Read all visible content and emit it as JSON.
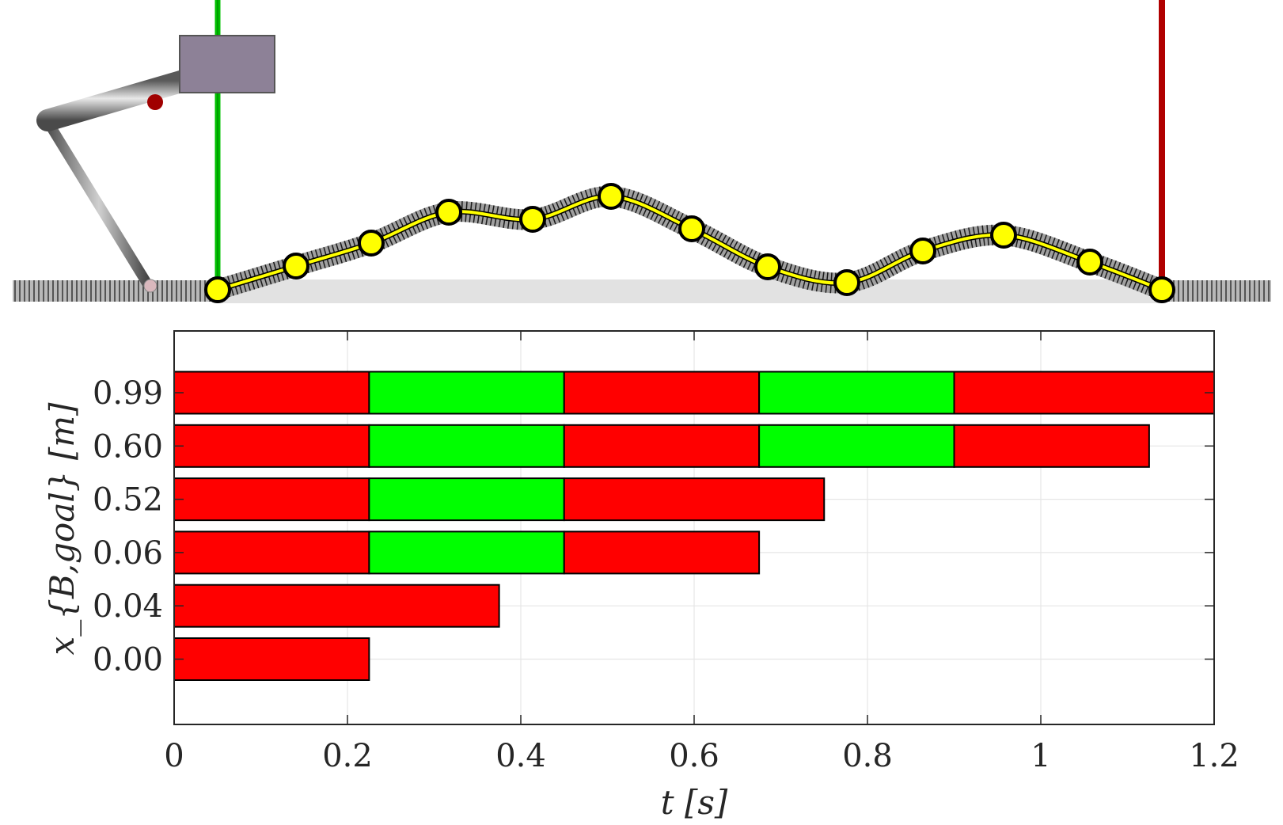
{
  "chart_data": {
    "type": "bar",
    "orientation": "horizontal-stacked-timeline",
    "xlabel": "t [s]",
    "ylabel": "x_{B,goal} [m]",
    "xlim": [
      0,
      1.2
    ],
    "xticks": [
      "0",
      "0.2",
      "0.4",
      "0.6",
      "0.8",
      "1",
      "1.2"
    ],
    "xtick_values": [
      0,
      0.2,
      0.4,
      0.6,
      0.8,
      1,
      1.2
    ],
    "grid": true,
    "phase_colors": {
      "stance": "#ff0000",
      "flight": "#00ff00"
    },
    "rows": [
      {
        "label": "0.99",
        "segments": [
          {
            "start": 0,
            "end": 0.225,
            "phase": "stance"
          },
          {
            "start": 0.225,
            "end": 0.45,
            "phase": "flight"
          },
          {
            "start": 0.45,
            "end": 0.675,
            "phase": "stance"
          },
          {
            "start": 0.675,
            "end": 0.9,
            "phase": "flight"
          },
          {
            "start": 0.9,
            "end": 1.2,
            "phase": "stance"
          }
        ]
      },
      {
        "label": "0.60",
        "segments": [
          {
            "start": 0,
            "end": 0.225,
            "phase": "stance"
          },
          {
            "start": 0.225,
            "end": 0.45,
            "phase": "flight"
          },
          {
            "start": 0.45,
            "end": 0.675,
            "phase": "stance"
          },
          {
            "start": 0.675,
            "end": 0.9,
            "phase": "flight"
          },
          {
            "start": 0.9,
            "end": 1.125,
            "phase": "stance"
          }
        ]
      },
      {
        "label": "0.52",
        "segments": [
          {
            "start": 0,
            "end": 0.225,
            "phase": "stance"
          },
          {
            "start": 0.225,
            "end": 0.45,
            "phase": "flight"
          },
          {
            "start": 0.45,
            "end": 0.75,
            "phase": "stance"
          }
        ]
      },
      {
        "label": "0.06",
        "segments": [
          {
            "start": 0,
            "end": 0.225,
            "phase": "stance"
          },
          {
            "start": 0.225,
            "end": 0.45,
            "phase": "flight"
          },
          {
            "start": 0.45,
            "end": 0.675,
            "phase": "stance"
          }
        ]
      },
      {
        "label": "0.04",
        "segments": [
          {
            "start": 0,
            "end": 0.375,
            "phase": "stance"
          }
        ]
      },
      {
        "label": "0.00",
        "segments": [
          {
            "start": 0,
            "end": 0.225,
            "phase": "stance"
          }
        ]
      }
    ]
  },
  "illustration": {
    "start_marker_color": "#00cc00",
    "goal_marker_color": "#c00000",
    "trajectory_color": "#ffff00",
    "waypoint_count": 13
  }
}
